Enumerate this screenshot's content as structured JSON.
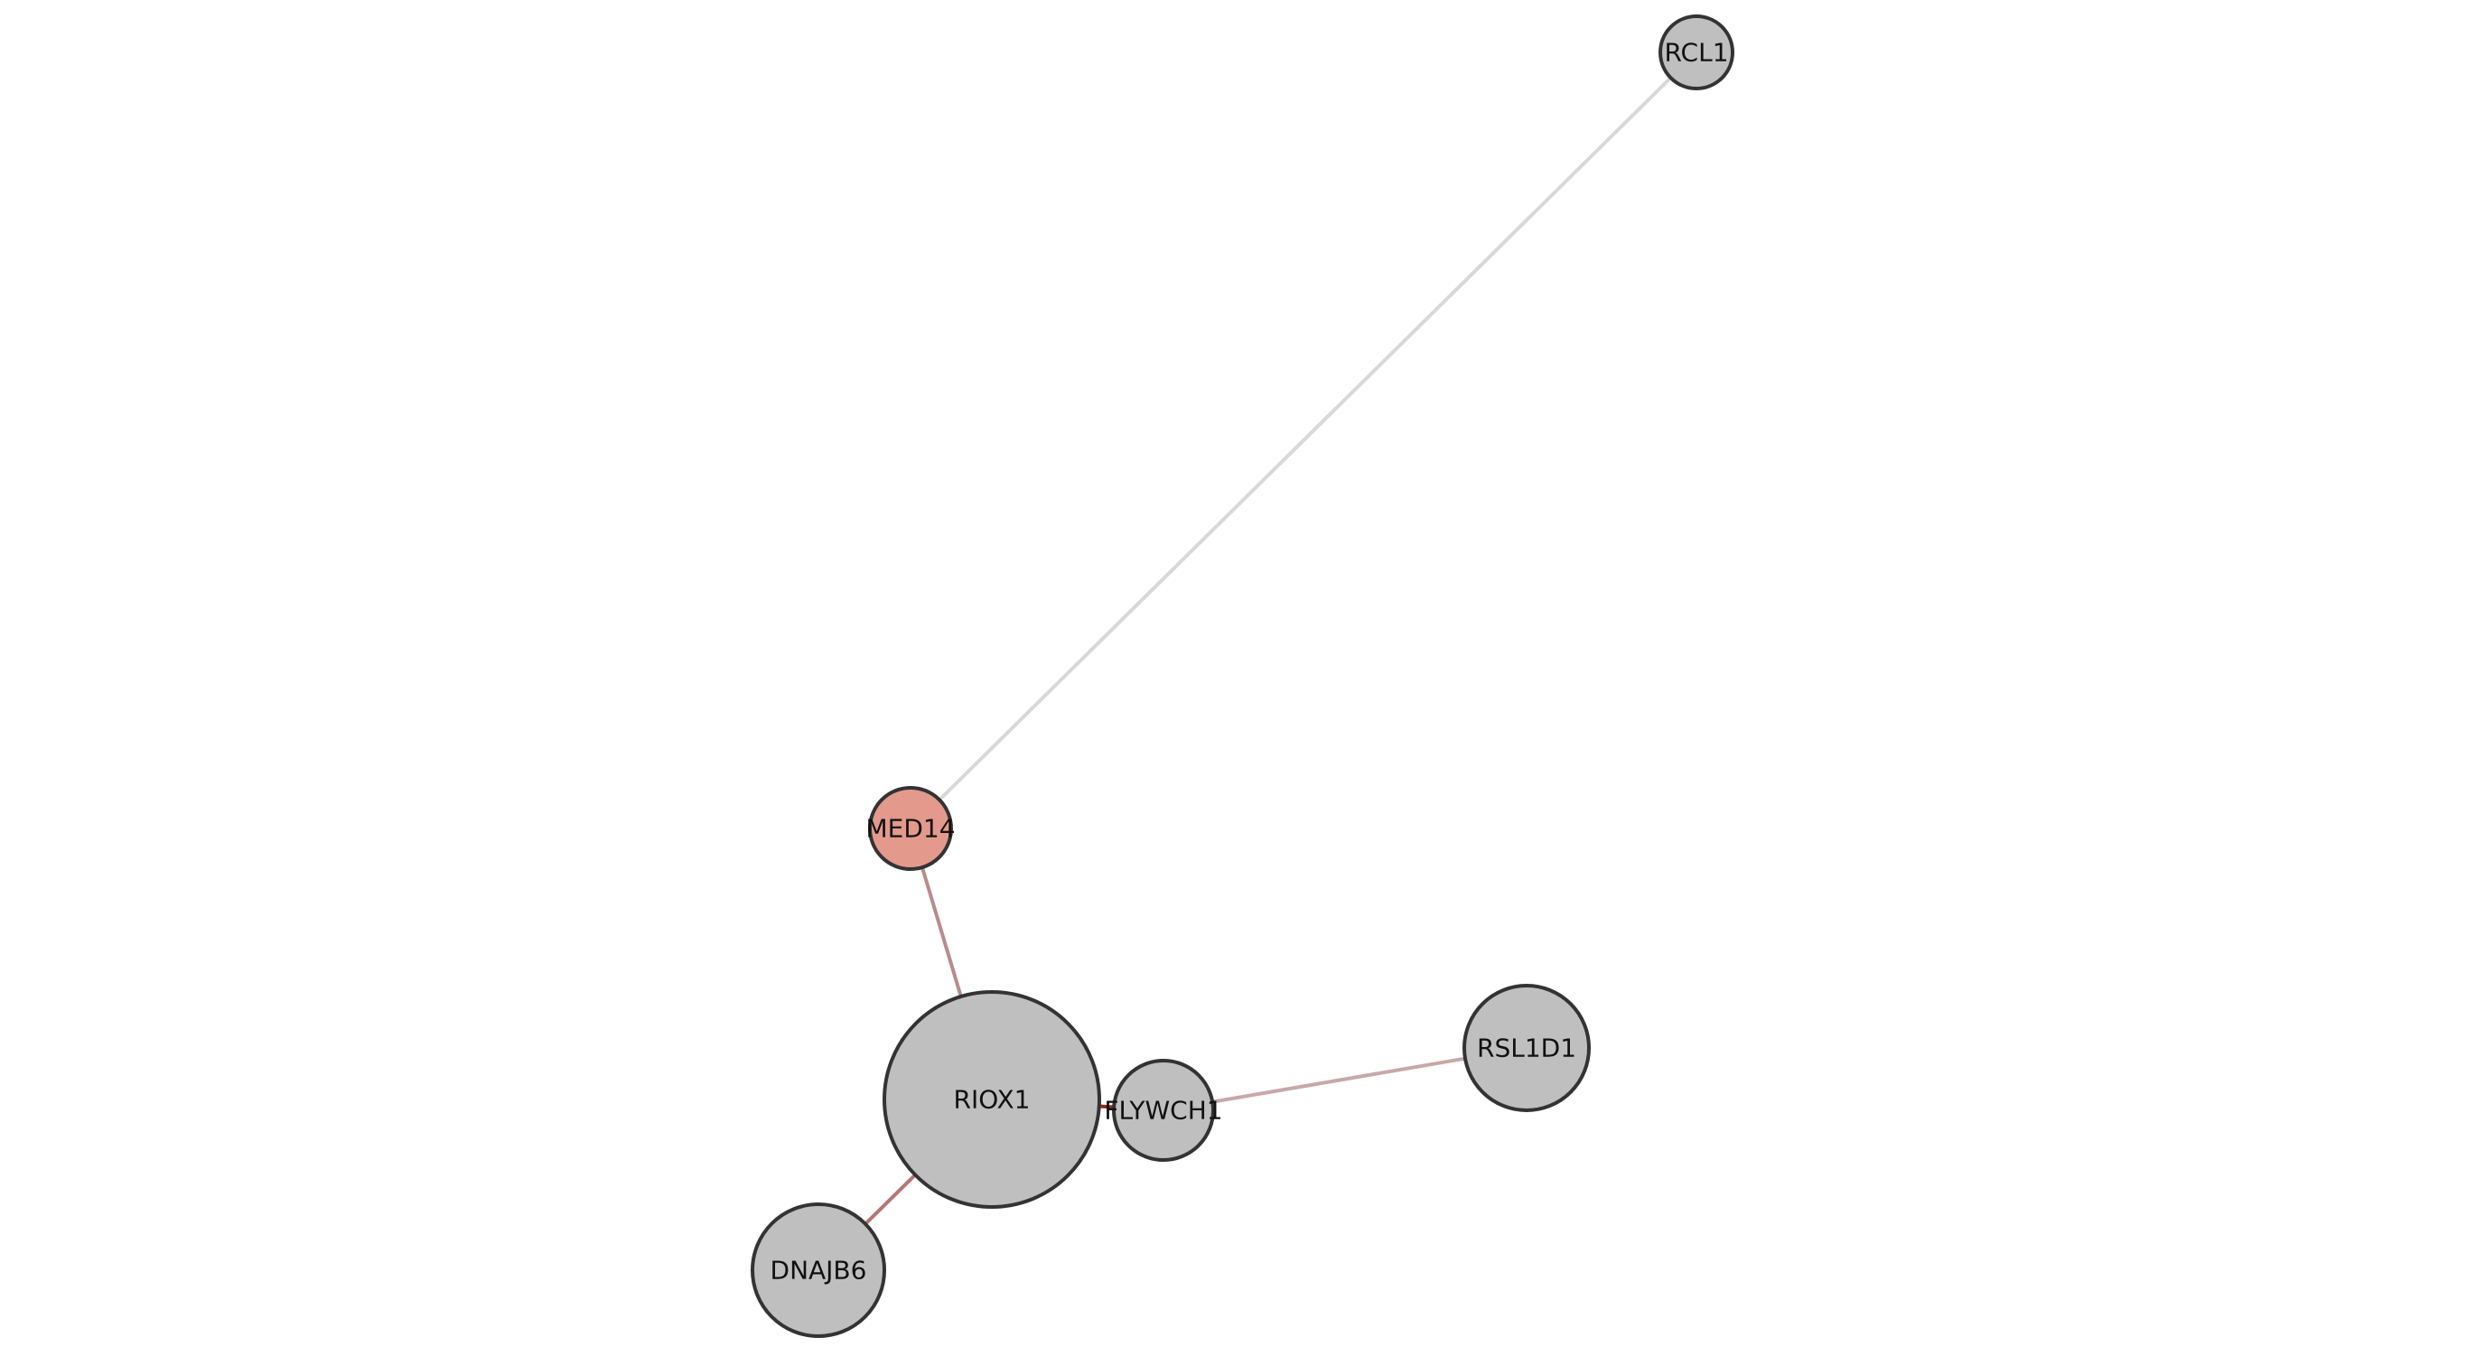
{
  "nodes": [
    {
      "id": "RCL1",
      "label": "RCL1",
      "color": "#bfbfbf"
    },
    {
      "id": "MED14",
      "label": "MED14",
      "color": "#e39a8c"
    },
    {
      "id": "RIOX1",
      "label": "RIOX1",
      "color": "#bfbfbf"
    },
    {
      "id": "FLYWCH1",
      "label": "FLYWCH1",
      "color": "#bfbfbf"
    },
    {
      "id": "RSL1D1",
      "label": "RSL1D1",
      "color": "#bfbfbf"
    },
    {
      "id": "DNAJB6",
      "label": "DNAJB6",
      "color": "#bfbfbf"
    }
  ],
  "edges": [
    {
      "source": "MED14",
      "target": "RCL1",
      "color": "#d8d8d8"
    },
    {
      "source": "MED14",
      "target": "RIOX1",
      "color": "#b88c8c"
    },
    {
      "source": "RIOX1",
      "target": "FLYWCH1",
      "color": "#8e2a1c"
    },
    {
      "source": "FLYWCH1",
      "target": "RSL1D1",
      "color": "#c8a8a8"
    },
    {
      "source": "RIOX1",
      "target": "DNAJB6",
      "color": "#b87474"
    }
  ],
  "style": {
    "node_stroke": "#333333",
    "background": "#ffffff"
  }
}
